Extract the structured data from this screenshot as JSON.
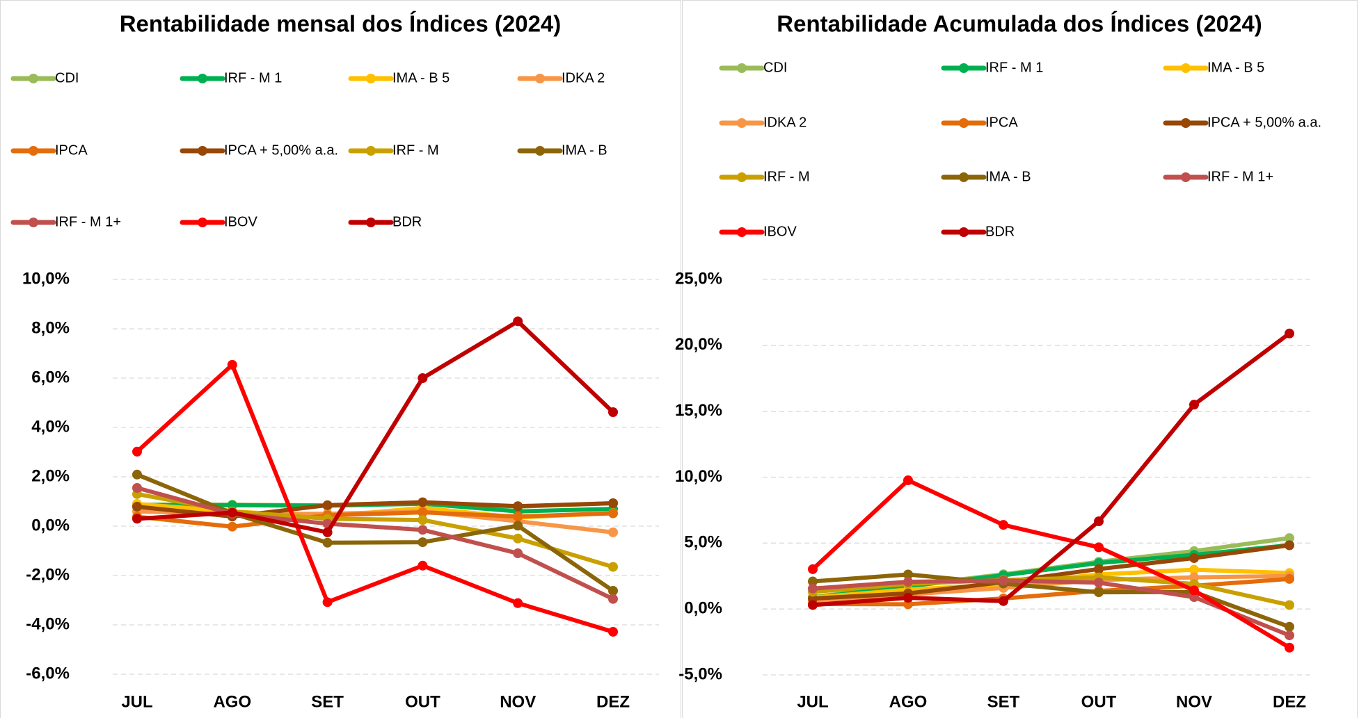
{
  "chart_data": [
    {
      "type": "line",
      "title": "Rentabilidade mensal dos Índices (2024)",
      "categories": [
        "JUL",
        "AGO",
        "SET",
        "OUT",
        "NOV",
        "DEZ"
      ],
      "ylim": [
        -6,
        10
      ],
      "yticks": [
        {
          "value": -6,
          "label": "-6,0%"
        },
        {
          "value": -4,
          "label": "-4,0%"
        },
        {
          "value": -2,
          "label": "-2,0%"
        },
        {
          "value": 0,
          "label": "0,0%"
        },
        {
          "value": 2,
          "label": "2,0%"
        },
        {
          "value": 4,
          "label": "4,0%"
        },
        {
          "value": 6,
          "label": "6,0%"
        },
        {
          "value": 8,
          "label": "8,0%"
        },
        {
          "value": 10,
          "label": "10,0%"
        }
      ],
      "grid": true,
      "legend": "top",
      "series": [
        {
          "name": "CDI",
          "color": "#9bbb59",
          "values": [
            0.87,
            0.87,
            0.84,
            0.93,
            0.79,
            0.93
          ]
        },
        {
          "name": "IRF - M 1",
          "color": "#00b050",
          "values": [
            0.86,
            0.85,
            0.83,
            0.91,
            0.6,
            0.7
          ]
        },
        {
          "name": "IMA - B 5",
          "color": "#ffc000",
          "values": [
            0.9,
            0.59,
            0.4,
            0.74,
            0.35,
            0.53
          ]
        },
        {
          "name": "IDKA 2",
          "color": "#f79646",
          "values": [
            0.6,
            0.5,
            0.5,
            0.6,
            0.2,
            -0.25
          ]
        },
        {
          "name": "IPCA",
          "color": "#e46c0a",
          "values": [
            0.38,
            -0.02,
            0.44,
            0.56,
            0.39,
            0.52
          ]
        },
        {
          "name": "IPCA + 5,00% a.a.",
          "color": "#974706",
          "values": [
            0.79,
            0.39,
            0.85,
            0.97,
            0.81,
            0.93
          ]
        },
        {
          "name": "IRF - M",
          "color": "#c9a000",
          "values": [
            1.3,
            0.6,
            0.3,
            0.25,
            -0.5,
            -1.65
          ]
        },
        {
          "name": "IMA - B",
          "color": "#8b6508",
          "values": [
            2.09,
            0.52,
            -0.67,
            -0.65,
            0.02,
            -2.62
          ]
        },
        {
          "name": "IRF - M 1+",
          "color": "#c0504d",
          "values": [
            1.55,
            0.5,
            0.1,
            -0.15,
            -1.1,
            -2.95
          ]
        },
        {
          "name": "IBOV",
          "color": "#ff0000",
          "values": [
            3.02,
            6.54,
            -3.08,
            -1.6,
            -3.12,
            -4.28
          ]
        },
        {
          "name": "BDR",
          "color": "#c00000",
          "values": [
            0.3,
            0.55,
            -0.25,
            6.0,
            8.3,
            4.62
          ]
        }
      ]
    },
    {
      "type": "line",
      "title": "Rentabilidade Acumulada dos Índices (2024)",
      "categories": [
        "JUL",
        "AGO",
        "SET",
        "OUT",
        "NOV",
        "DEZ"
      ],
      "ylim": [
        -5,
        25
      ],
      "yticks": [
        {
          "value": -5,
          "label": "-5,0%"
        },
        {
          "value": 0,
          "label": "0,0%"
        },
        {
          "value": 5,
          "label": "5,0%"
        },
        {
          "value": 10,
          "label": "10,0%"
        },
        {
          "value": 15,
          "label": "15,0%"
        },
        {
          "value": 20,
          "label": "20,0%"
        },
        {
          "value": 25,
          "label": "25,0%"
        }
      ],
      "grid": true,
      "legend": "top",
      "series": [
        {
          "name": "CDI",
          "color": "#9bbb59",
          "values": [
            0.91,
            1.78,
            2.63,
            3.58,
            4.39,
            5.38
          ]
        },
        {
          "name": "IRF - M 1",
          "color": "#00b050",
          "values": [
            0.86,
            1.72,
            2.56,
            3.49,
            4.11,
            4.84
          ]
        },
        {
          "name": "IMA - B 5",
          "color": "#ffc000",
          "values": [
            0.87,
            1.47,
            1.87,
            2.62,
            2.98,
            2.73
          ]
        },
        {
          "name": "IDKA 2",
          "color": "#f79646",
          "values": [
            0.6,
            1.1,
            1.6,
            2.2,
            2.4,
            2.5
          ]
        },
        {
          "name": "IPCA",
          "color": "#e46c0a",
          "values": [
            0.38,
            0.36,
            0.8,
            1.37,
            1.76,
            2.28
          ]
        },
        {
          "name": "IPCA + 5,00% a.a.",
          "color": "#974706",
          "values": [
            0.79,
            1.18,
            2.04,
            3.03,
            3.86,
            4.83
          ]
        },
        {
          "name": "IRF - M",
          "color": "#c9a000",
          "values": [
            1.3,
            1.9,
            2.2,
            2.4,
            1.9,
            0.3
          ]
        },
        {
          "name": "IMA - B",
          "color": "#8b6508",
          "values": [
            2.09,
            2.62,
            1.93,
            1.27,
            1.29,
            -1.35
          ]
        },
        {
          "name": "IRF - M 1+",
          "color": "#c0504d",
          "values": [
            1.55,
            2.06,
            2.16,
            2.0,
            0.9,
            -2.0
          ]
        },
        {
          "name": "IBOV",
          "color": "#ff0000",
          "values": [
            3.02,
            9.76,
            6.38,
            4.68,
            1.41,
            -2.93
          ]
        },
        {
          "name": "BDR",
          "color": "#c00000",
          "values": [
            0.3,
            0.85,
            0.6,
            6.65,
            15.5,
            20.9
          ]
        }
      ]
    }
  ]
}
